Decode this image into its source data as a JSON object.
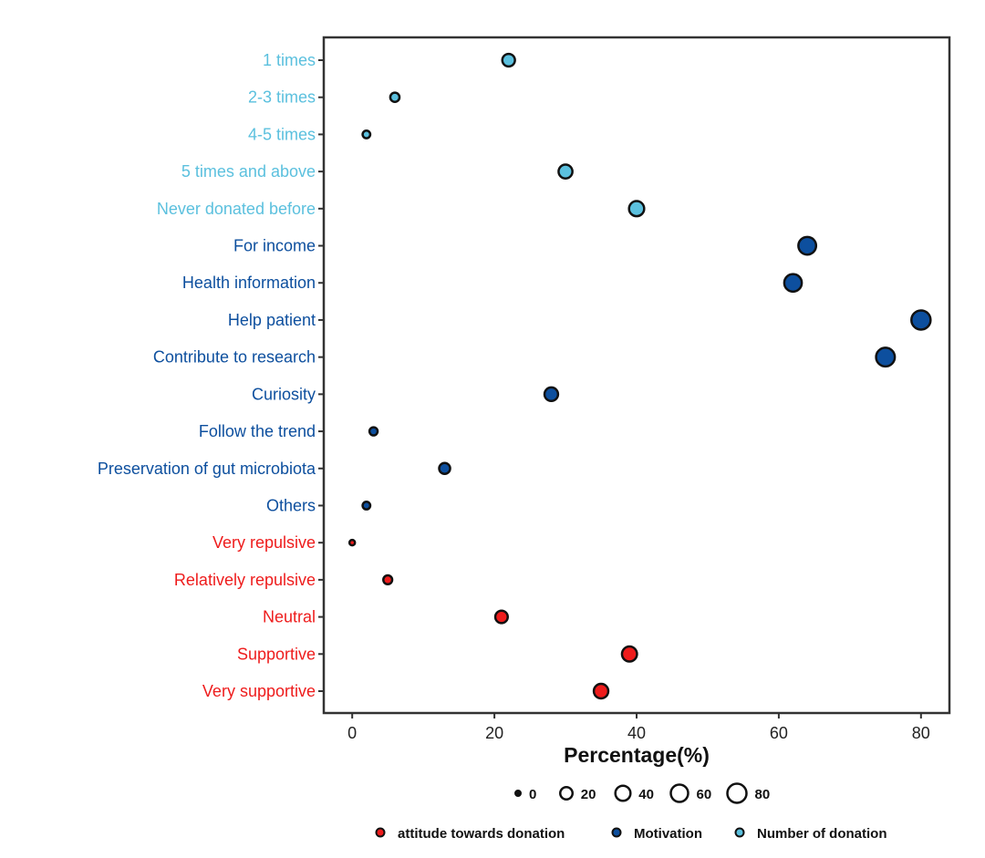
{
  "chart_data": {
    "type": "scatter",
    "xlabel": "Percentage(%)",
    "ylabel": "",
    "xlim": [
      -4,
      84
    ],
    "x_ticks": [
      0,
      20,
      40,
      60,
      80
    ],
    "grid": false,
    "categories": [
      "1 times",
      "2-3 times",
      "4-5 times",
      "5 times and above",
      "Never donated before",
      "For income",
      "Health information",
      "Help patient",
      "Contribute to research",
      "Curiosity",
      "Follow the trend",
      "Preservation of gut microbiota",
      "Others",
      "Very repulsive",
      "Relatively repulsive",
      "Neutral",
      "Supportive",
      "Very supportive"
    ],
    "series": [
      {
        "name": "Number of donation",
        "color": "#5bc0de",
        "points": [
          {
            "label": "1 times",
            "value": 22
          },
          {
            "label": "2-3 times",
            "value": 6
          },
          {
            "label": "4-5 times",
            "value": 2
          },
          {
            "label": "5 times and above",
            "value": 30
          },
          {
            "label": "Never donated before",
            "value": 40
          }
        ]
      },
      {
        "name": "Motivation",
        "color": "#0d4f9e",
        "points": [
          {
            "label": "For income",
            "value": 64
          },
          {
            "label": "Health information",
            "value": 62
          },
          {
            "label": "Help patient",
            "value": 80
          },
          {
            "label": "Contribute to research",
            "value": 75
          },
          {
            "label": "Curiosity",
            "value": 28
          },
          {
            "label": "Follow the trend",
            "value": 3
          },
          {
            "label": "Preservation of gut microbiota",
            "value": 13
          },
          {
            "label": "Others",
            "value": 2
          }
        ]
      },
      {
        "name": "attitude towards donation",
        "color": "#ee1c1c",
        "points": [
          {
            "label": "Very repulsive",
            "value": 0
          },
          {
            "label": "Relatively repulsive",
            "value": 5
          },
          {
            "label": "Neutral",
            "value": 21
          },
          {
            "label": "Supportive",
            "value": 39
          },
          {
            "label": "Very supportive",
            "value": 35
          }
        ]
      }
    ],
    "size_legend": {
      "values": [
        0,
        20,
        40,
        60,
        80
      ]
    },
    "color_legend": {
      "entries": [
        {
          "label": "attitude towards donation",
          "color": "#ee1c1c"
        },
        {
          "label": "Motivation",
          "color": "#0d4f9e"
        },
        {
          "label": "Number of donation",
          "color": "#5bc0de"
        }
      ]
    }
  }
}
